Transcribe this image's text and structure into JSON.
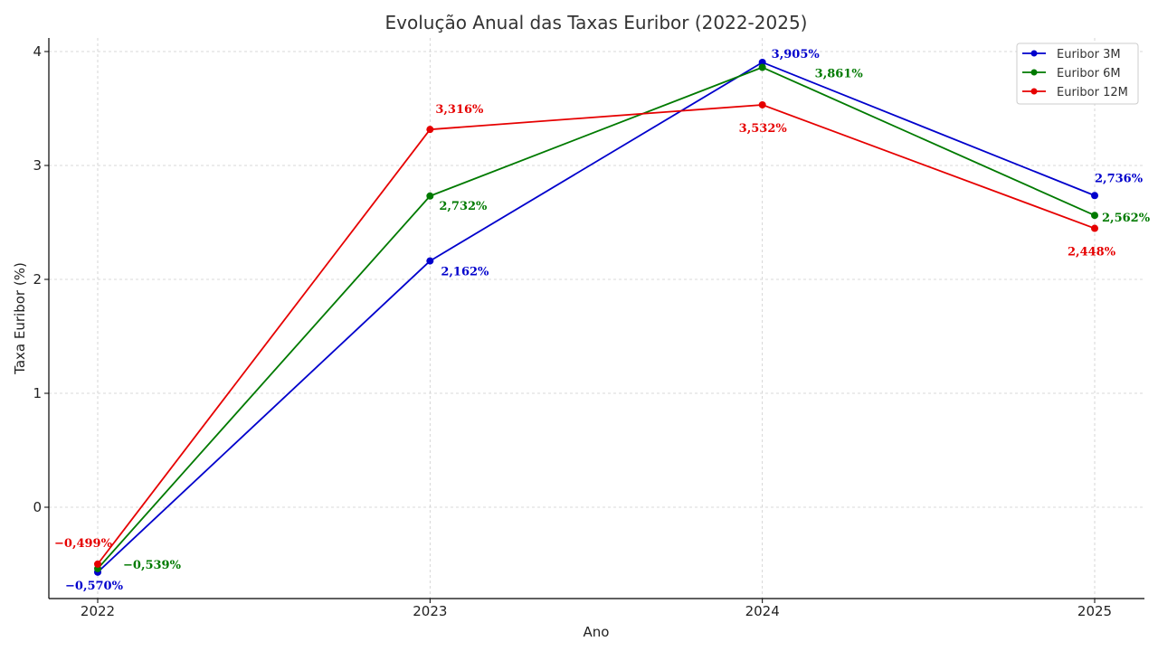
{
  "chart_data": {
    "type": "line",
    "title": "Evolução Anual das Taxas Euribor (2022-2025)",
    "xlabel": "Ano",
    "ylabel": "Taxa Euribor (%)",
    "x": [
      "2022",
      "2023",
      "2024",
      "2025"
    ],
    "y_ticks": [
      "0",
      "1",
      "2",
      "3",
      "4"
    ],
    "ylim": [
      -0.8,
      4.13
    ],
    "grid": true,
    "legend_position": "top-right",
    "series": [
      {
        "name": "Euribor 3M",
        "color": "#0000cc",
        "values": [
          -0.57,
          2.162,
          3.905,
          2.736
        ],
        "labels": [
          "−0,570%",
          "2,162%",
          "3,905%",
          "2,736%"
        ]
      },
      {
        "name": "Euribor 6M",
        "color": "#007a00",
        "values": [
          -0.539,
          2.732,
          3.861,
          2.562
        ],
        "labels": [
          "−0,539%",
          "2,732%",
          "3,861%",
          "2,562%"
        ]
      },
      {
        "name": "Euribor 12M",
        "color": "#e60000",
        "values": [
          -0.499,
          3.316,
          3.532,
          2.448
        ],
        "labels": [
          "−0,499%",
          "3,316%",
          "3,532%",
          "2,448%"
        ]
      }
    ]
  }
}
